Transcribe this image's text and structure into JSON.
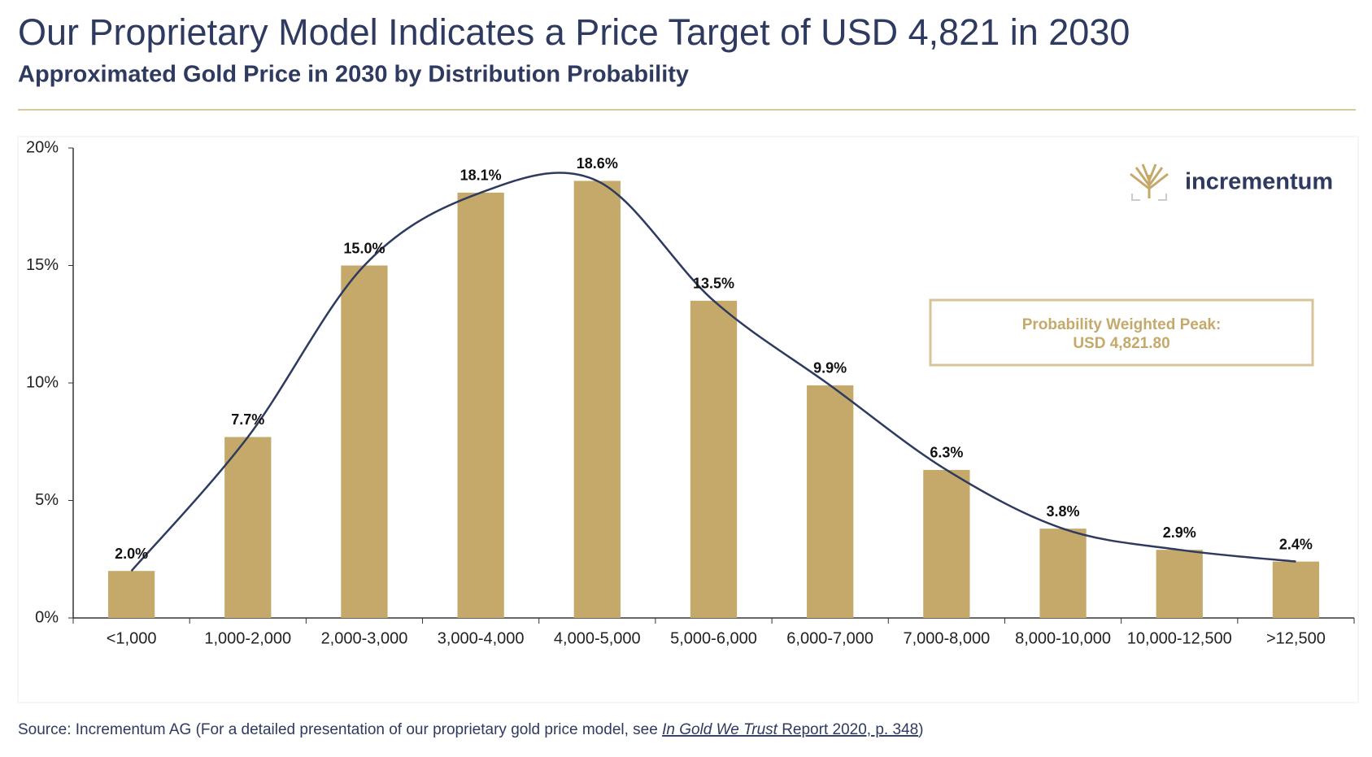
{
  "chart_data": {
    "type": "bar",
    "title": "Our Proprietary Model Indicates a Price Target of USD 4,821 in 2030",
    "subtitle": "Approximated Gold Price in 2030 by Distribution Probability",
    "categories": [
      "<1,000",
      "1,000-2,000",
      "2,000-3,000",
      "3,000-4,000",
      "4,000-5,000",
      "5,000-6,000",
      "6,000-7,000",
      "7,000-8,000",
      "8,000-10,000",
      "10,000-12,500",
      ">12,500"
    ],
    "values": [
      2.0,
      7.7,
      15.0,
      18.1,
      18.6,
      13.5,
      9.9,
      6.3,
      3.8,
      2.9,
      2.4
    ],
    "value_labels": [
      "2.0%",
      "7.7%",
      "15.0%",
      "18.1%",
      "18.6%",
      "13.5%",
      "9.9%",
      "6.3%",
      "3.8%",
      "2.9%",
      "2.4%"
    ],
    "color": "#c4a96b",
    "curve_color": "#2e3a5f",
    "ylim": [
      0,
      20
    ],
    "yticks": [
      {
        "value": 0,
        "label": "0%"
      },
      {
        "value": 5,
        "label": "5%"
      },
      {
        "value": 10,
        "label": "10%"
      },
      {
        "value": 15,
        "label": "15%"
      },
      {
        "value": 20,
        "label": "20%"
      }
    ],
    "annotation": [
      "Probability Weighted Peak:",
      "USD 4,821.80"
    ],
    "logo": "incrementum",
    "source": [
      "Source: Incrementum AG (For a detailed presentation of our proprietary gold price model, see ",
      "In Gold We Trust",
      " Report 2020, p. 348",
      ")"
    ]
  }
}
